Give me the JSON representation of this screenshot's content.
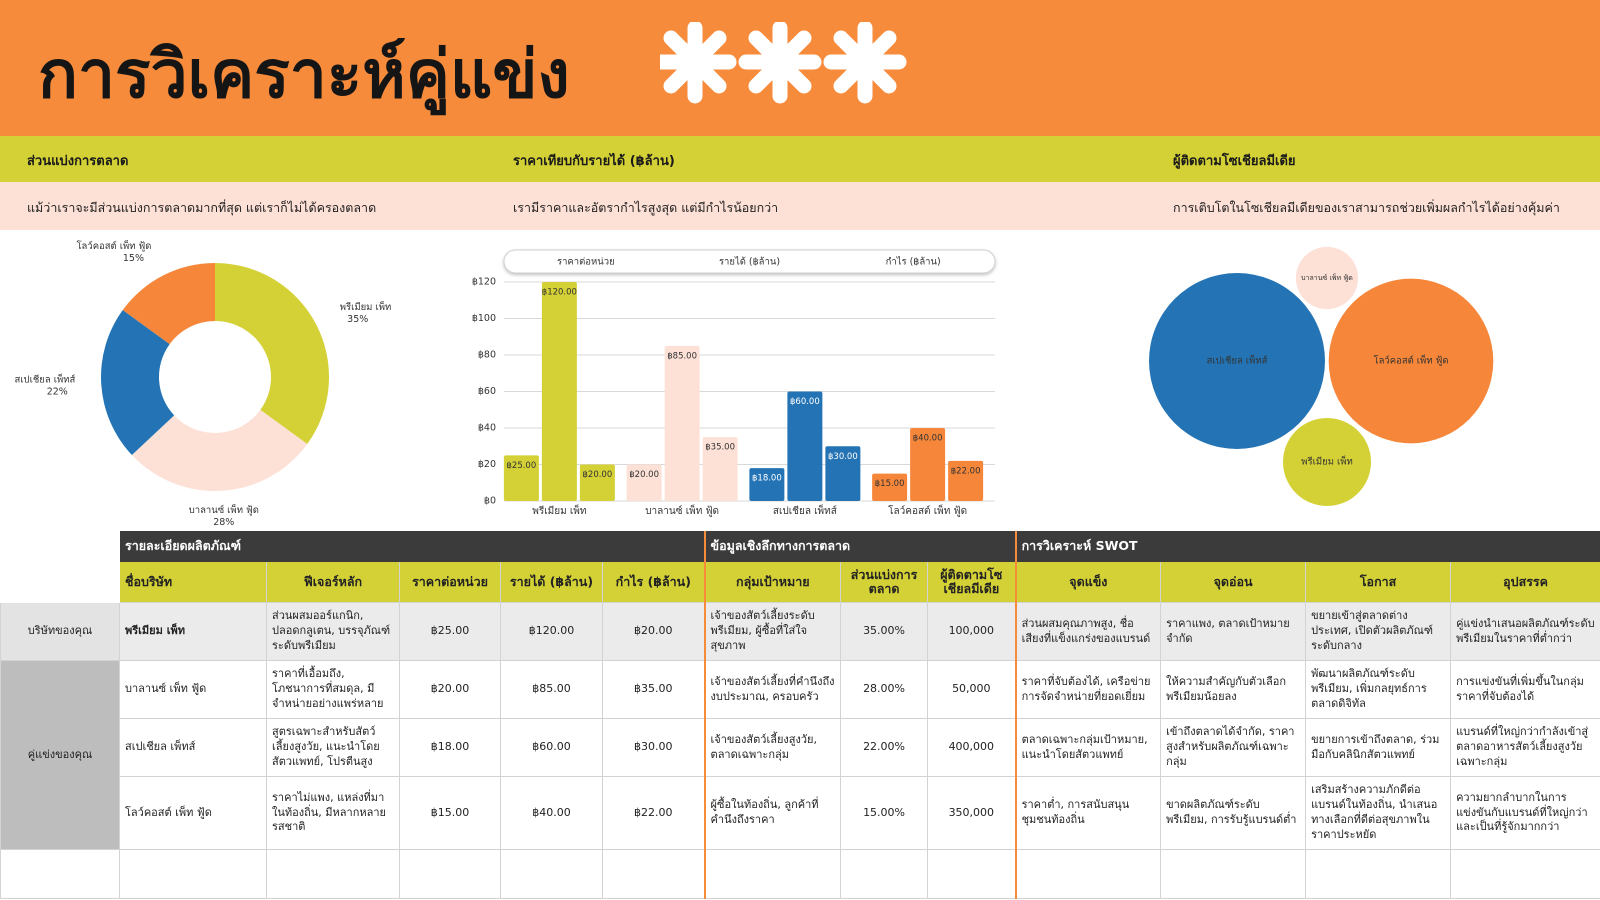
{
  "header": {
    "title": "การวิเคราะห์คู่แข่ง"
  },
  "sections": [
    {
      "title": "ส่วนแบ่งการตลาด",
      "subtitle": "แม้ว่าเราจะมีส่วนแบ่งการตลาดมากที่สุด แต่เราก็ไม่ได้ครองตลาด"
    },
    {
      "title": "ราคาเทียบกับรายได้ (฿ล้าน)",
      "subtitle": "เรามีราคาและอัตรากำไรสูงสุด แต่มีกำไรน้อยกว่า"
    },
    {
      "title": "ผู้ติดตามโซเชียลมีเดีย",
      "subtitle": "การเติบโตในโซเชียลมีเดียของเราสามารถช่วยเพิ่มผลกำไรได้อย่างคุ้มค่า"
    }
  ],
  "chart_data": [
    {
      "type": "pie",
      "donut": true,
      "categories": [
        "พรีเมียม เพ็ท",
        "บาลานซ์ เพ็ท ฟู้ด",
        "สเปเชียล เพ็ทส์",
        "โลว์คอสต์ เพ็ท ฟู้ด"
      ],
      "values": [
        35,
        28,
        22,
        15
      ],
      "value_labels": [
        "35%",
        "28%",
        "22%",
        "15%"
      ],
      "colors": [
        "#d4d136",
        "#fde0d6",
        "#2474b5",
        "#f6873a"
      ]
    },
    {
      "type": "bar",
      "categories": [
        "พรีเมียม เพ็ท",
        "บาลานซ์ เพ็ท ฟู้ด",
        "สเปเชียล เพ็ทส์",
        "โลว์คอสต์ เพ็ท ฟู้ด"
      ],
      "colors": [
        "#d4d136",
        "#fde0d6",
        "#2474b5",
        "#f6873a"
      ],
      "series": [
        {
          "name": "ราคาต่อหน่วย",
          "values": [
            25,
            20,
            18,
            15
          ],
          "value_labels": [
            "฿25.00",
            "฿20.00",
            "฿18.00",
            "฿15.00"
          ]
        },
        {
          "name": "รายได้ (฿ล้าน)",
          "values": [
            120,
            85,
            60,
            40
          ],
          "value_labels": [
            "฿120.00",
            "฿85.00",
            "฿60.00",
            "฿40.00"
          ]
        },
        {
          "name": "กำไร (฿ล้าน)",
          "values": [
            20,
            35,
            30,
            22
          ],
          "value_labels": [
            "฿20.00",
            "฿35.00",
            "฿30.00",
            "฿22.00"
          ]
        }
      ],
      "ylim": [
        0,
        120
      ],
      "yticks": [
        {
          "value": 0,
          "label": "฿0"
        },
        {
          "value": 20,
          "label": "฿20"
        },
        {
          "value": 40,
          "label": "฿40"
        },
        {
          "value": 60,
          "label": "฿60"
        },
        {
          "value": 80,
          "label": "฿80"
        },
        {
          "value": 100,
          "label": "฿100"
        },
        {
          "value": 120,
          "label": "฿120"
        }
      ],
      "grid": true,
      "legend": "top"
    },
    {
      "type": "bubble",
      "categories": [
        "พรีเมียม เพ็ท",
        "บาลานซ์ เพ็ท ฟู้ด",
        "สเปเชียล เพ็ทส์",
        "โลว์คอสต์ เพ็ท ฟู้ด"
      ],
      "values": [
        100000,
        50000,
        400000,
        350000
      ],
      "colors": [
        "#d4d136",
        "#fde0d6",
        "#2474b5",
        "#f6873a"
      ]
    }
  ],
  "table": {
    "groups": [
      "รายละเอียดผลิตภัณฑ์",
      "ข้อมูลเชิงลึกทางการตลาด",
      "การวิเคราะห์ SWOT"
    ],
    "columns": [
      "ชื่อบริษัท",
      "ฟีเจอร์หลัก",
      "ราคาต่อหน่วย",
      "รายได้ (฿ล้าน)",
      "กำไร (฿ล้าน)",
      "กลุ่มเป้าหมาย",
      "ส่วนแบ่งการตลาด",
      "ผู้ติดตามโซเชียลมีเดีย",
      "จุดแข็ง",
      "จุดอ่อน",
      "โอกาส",
      "อุปสรรค"
    ],
    "row_groups": [
      "บริษัทของคุณ",
      "คู่แข่งของคุณ"
    ],
    "rows": [
      [
        "พรีเมียม เพ็ท",
        "ส่วนผสมออร์แกนิก, ปลอดกลูเตน, บรรจุภัณฑ์ระดับพรีเมียม",
        "฿25.00",
        "฿120.00",
        "฿20.00",
        "เจ้าของสัตว์เลี้ยงระดับพรีเมียม, ผู้ซื้อที่ใส่ใจสุขภาพ",
        "35.00%",
        "100,000",
        "ส่วนผสมคุณภาพสูง, ชื่อเสียงที่แข็งแกร่งของแบรนด์",
        "ราคาแพง, ตลาดเป้าหมายจำกัด",
        "ขยายเข้าสู่ตลาดต่างประเทศ, เปิดตัวผลิตภัณฑ์ระดับกลาง",
        "คู่แข่งนำเสนอผลิตภัณฑ์ระดับพรีเมียมในราคาที่ต่ำกว่า"
      ],
      [
        "บาลานซ์ เพ็ท ฟู้ด",
        "ราคาที่เอื้อมถึง, โภชนาการที่สมดุล, มีจำหน่ายอย่างแพร่หลาย",
        "฿20.00",
        "฿85.00",
        "฿35.00",
        "เจ้าของสัตว์เลี้ยงที่คำนึงถึงงบประมาณ, ครอบครัว",
        "28.00%",
        "50,000",
        "ราคาที่จับต้องได้, เครือข่ายการจัดจำหน่ายที่ยอดเยี่ยม",
        "ให้ความสำคัญกับตัวเลือกพรีเมียมน้อยลง",
        "พัฒนาผลิตภัณฑ์ระดับพรีเมียม, เพิ่มกลยุทธ์การตลาดดิจิทัล",
        "การแข่งขันที่เพิ่มขึ้นในกลุ่มราคาที่จับต้องได้"
      ],
      [
        "สเปเชียล เพ็ทส์",
        "สูตรเฉพาะสำหรับสัตว์เลี้ยงสูงวัย, แนะนำโดยสัตวแพทย์, โปรตีนสูง",
        "฿18.00",
        "฿60.00",
        "฿30.00",
        "เจ้าของสัตว์เลี้ยงสูงวัย, ตลาดเฉพาะกลุ่ม",
        "22.00%",
        "400,000",
        "ตลาดเฉพาะกลุ่มเป้าหมาย, แนะนำโดยสัตวแพทย์",
        "เข้าถึงตลาดได้จำกัด, ราคาสูงสำหรับผลิตภัณฑ์เฉพาะกลุ่ม",
        "ขยายการเข้าถึงตลาด, ร่วมมือกับคลินิกสัตวแพทย์",
        "แบรนด์ที่ใหญ่กว่ากำลังเข้าสู่ตลาดอาหารสัตว์เลี้ยงสูงวัยเฉพาะกลุ่ม"
      ],
      [
        "โลว์คอสต์ เพ็ท ฟู้ด",
        "ราคาไม่แพง, แหล่งที่มาในท้องถิ่น, มีหลากหลายรสชาติ",
        "฿15.00",
        "฿40.00",
        "฿22.00",
        "ผู้ซื้อในท้องถิ่น, ลูกค้าที่คำนึงถึงราคา",
        "15.00%",
        "350,000",
        "ราคาต่ำ, การสนับสนุนชุมชนท้องถิ่น",
        "ขาดผลิตภัณฑ์ระดับพรีเมียม, การรับรู้แบรนด์ต่ำ",
        "เสริมสร้างความภักดีต่อแบรนด์ในท้องถิ่น, นำเสนอทางเลือกที่ดีต่อสุขภาพในราคาประหยัด",
        "ความยากลำบากในการแข่งขันกับแบรนด์ที่ใหญ่กว่าและเป็นที่รู้จักมากกว่า"
      ]
    ]
  }
}
